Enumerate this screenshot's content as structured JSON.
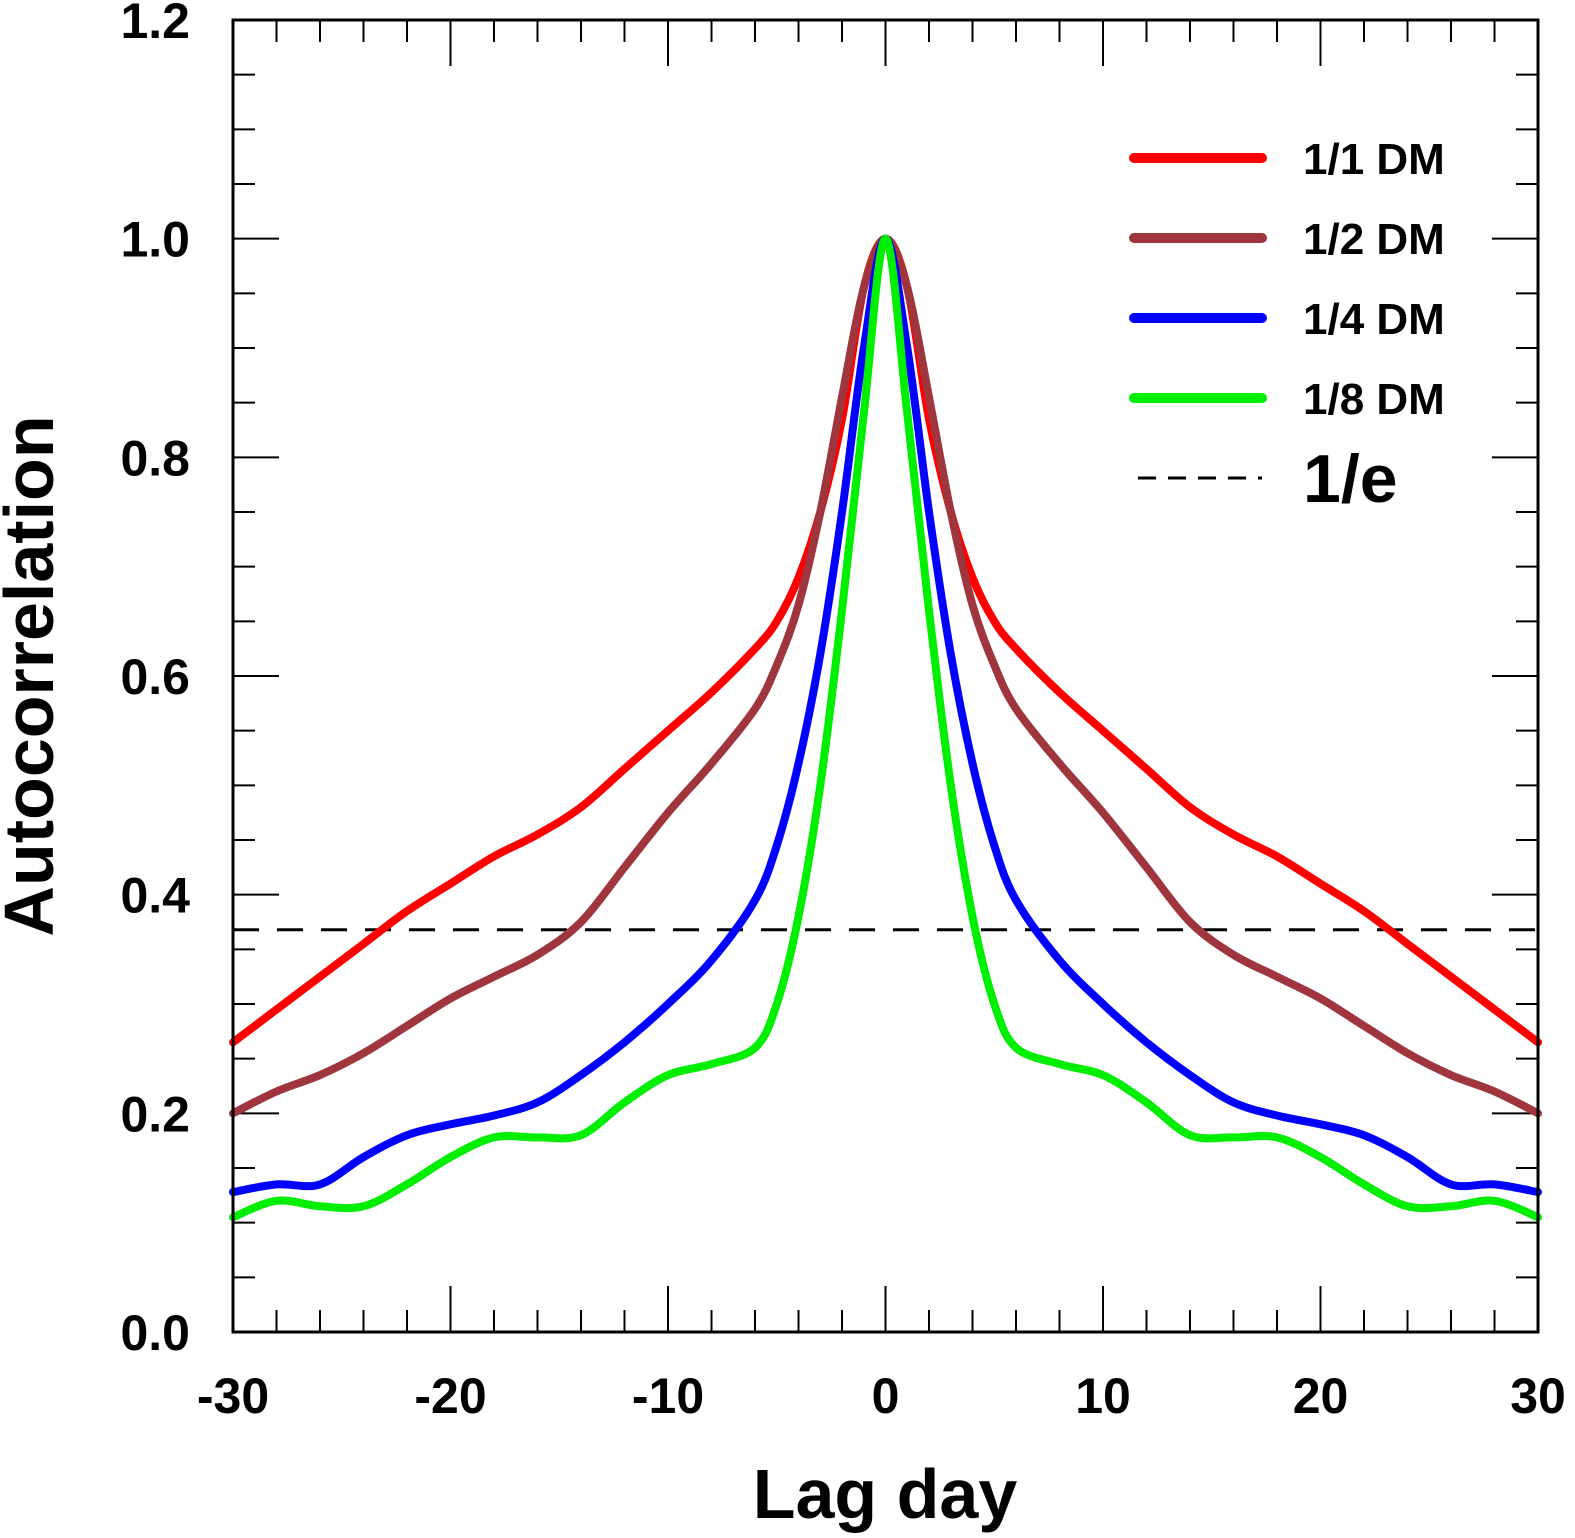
{
  "chart_data": {
    "type": "line",
    "xlabel": "Lag day",
    "ylabel": "Autocorrelation",
    "xlim": [
      -30,
      30
    ],
    "ylim": [
      0.0,
      1.2
    ],
    "xticks": [
      "-30",
      "-20",
      "-10",
      "0",
      "10",
      "20",
      "30"
    ],
    "yticks": [
      "0.0",
      "0.2",
      "0.4",
      "0.6",
      "0.8",
      "1.0",
      "1.2"
    ],
    "x": [
      -30,
      -28,
      -26,
      -24,
      -22,
      -20,
      -18,
      -16,
      -14,
      -12,
      -10,
      -8,
      -6,
      -5,
      -4,
      -3,
      -2,
      -1,
      0,
      1,
      2,
      3,
      4,
      5,
      6,
      8,
      10,
      12,
      14,
      16,
      18,
      20,
      22,
      24,
      26,
      28,
      30
    ],
    "series": [
      {
        "name": "1/1 DM",
        "color": "#ff0000",
        "values": [
          0.265,
          0.295,
          0.325,
          0.355,
          0.385,
          0.41,
          0.435,
          0.455,
          0.48,
          0.515,
          0.55,
          0.585,
          0.625,
          0.65,
          0.69,
          0.75,
          0.835,
          0.955,
          1.0,
          0.955,
          0.835,
          0.75,
          0.69,
          0.65,
          0.625,
          0.585,
          0.55,
          0.515,
          0.48,
          0.455,
          0.435,
          0.41,
          0.385,
          0.355,
          0.325,
          0.295,
          0.265
        ]
      },
      {
        "name": "1/2 DM",
        "color": "#a0363d",
        "values": [
          0.2,
          0.22,
          0.235,
          0.255,
          0.28,
          0.305,
          0.325,
          0.345,
          0.375,
          0.425,
          0.475,
          0.52,
          0.57,
          0.61,
          0.665,
          0.75,
          0.855,
          0.955,
          1.0,
          0.955,
          0.855,
          0.75,
          0.665,
          0.61,
          0.57,
          0.52,
          0.475,
          0.425,
          0.375,
          0.345,
          0.325,
          0.305,
          0.28,
          0.255,
          0.235,
          0.22,
          0.2
        ]
      },
      {
        "name": "1/4 DM",
        "color": "#0000ff",
        "values": [
          0.128,
          0.135,
          0.135,
          0.16,
          0.18,
          0.19,
          0.198,
          0.21,
          0.235,
          0.265,
          0.3,
          0.34,
          0.395,
          0.445,
          0.52,
          0.62,
          0.75,
          0.9,
          1.0,
          0.9,
          0.75,
          0.62,
          0.52,
          0.445,
          0.395,
          0.34,
          0.3,
          0.265,
          0.235,
          0.21,
          0.198,
          0.19,
          0.18,
          0.16,
          0.135,
          0.135,
          0.128
        ]
      },
      {
        "name": "1/8 DM",
        "color": "#00ee00",
        "values": [
          0.105,
          0.12,
          0.115,
          0.115,
          0.135,
          0.16,
          0.178,
          0.178,
          0.18,
          0.21,
          0.235,
          0.245,
          0.26,
          0.3,
          0.38,
          0.5,
          0.66,
          0.84,
          1.0,
          0.84,
          0.66,
          0.5,
          0.38,
          0.3,
          0.26,
          0.245,
          0.235,
          0.21,
          0.18,
          0.178,
          0.178,
          0.16,
          0.135,
          0.115,
          0.115,
          0.12,
          0.105
        ]
      }
    ],
    "reference_line": {
      "name": "1/e",
      "y": 0.3679,
      "style": "dashed",
      "color": "#000000"
    },
    "legend_position": "top-right",
    "grid": false
  }
}
